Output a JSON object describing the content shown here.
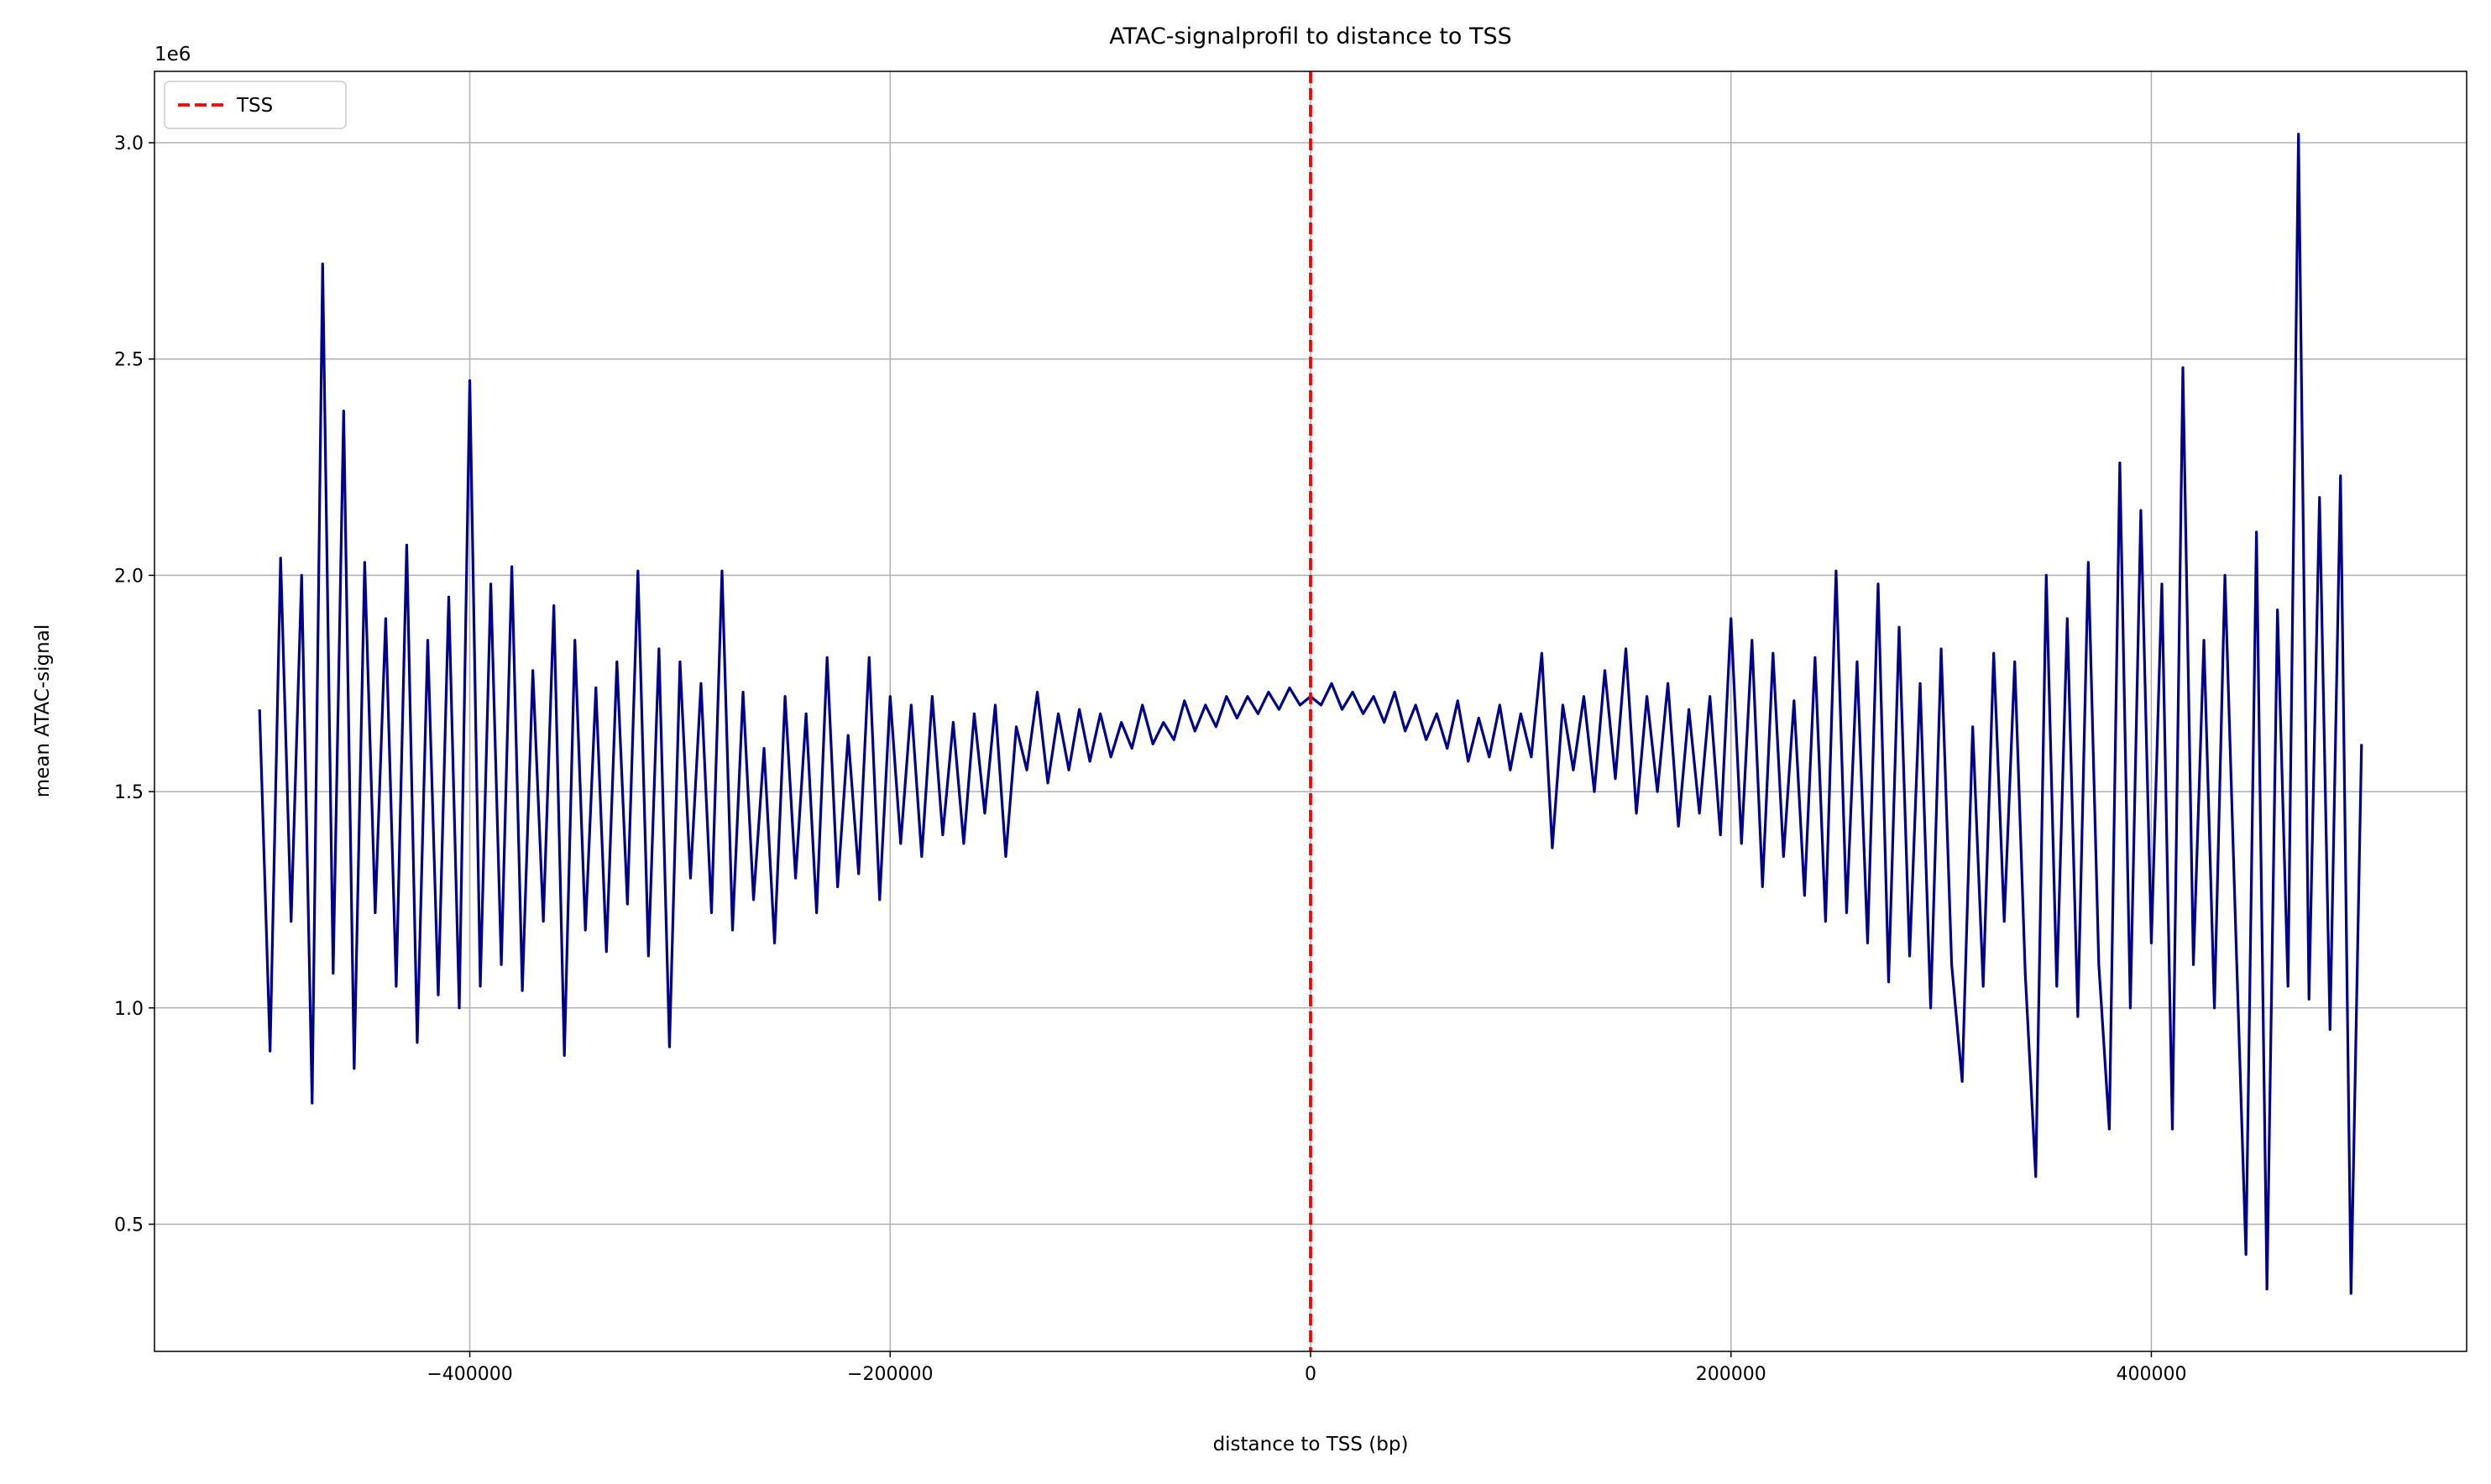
{
  "chart_data": {
    "type": "line",
    "title": "ATAC-signalprofil to distance to TSS",
    "x_label": "distance to TSS (bp)",
    "y_label": "mean ATAC-signal",
    "y_offset_label": "1e6",
    "x": [
      -500000,
      -495000,
      -490000,
      -485000,
      -480000,
      -475000,
      -470000,
      -465000,
      -460000,
      -455000,
      -450000,
      -445000,
      -440000,
      -435000,
      -430000,
      -425000,
      -420000,
      -415000,
      -410000,
      -405000,
      -400000,
      -395000,
      -390000,
      -385000,
      -380000,
      -375000,
      -370000,
      -365000,
      -360000,
      -355000,
      -350000,
      -345000,
      -340000,
      -335000,
      -330000,
      -325000,
      -320000,
      -315000,
      -310000,
      -305000,
      -300000,
      -295000,
      -290000,
      -285000,
      -280000,
      -275000,
      -270000,
      -265000,
      -260000,
      -255000,
      -250000,
      -245000,
      -240000,
      -235000,
      -230000,
      -225000,
      -220000,
      -215000,
      -210000,
      -205000,
      -200000,
      -195000,
      -190000,
      -185000,
      -180000,
      -175000,
      -170000,
      -165000,
      -160000,
      -155000,
      -150000,
      -145000,
      -140000,
      -135000,
      -130000,
      -125000,
      -120000,
      -115000,
      -110000,
      -105000,
      -100000,
      -95000,
      -90000,
      -85000,
      -80000,
      -75000,
      -70000,
      -65000,
      -60000,
      -55000,
      -50000,
      -45000,
      -40000,
      -35000,
      -30000,
      -25000,
      -20000,
      -15000,
      -10000,
      -5000,
      0,
      5000,
      10000,
      15000,
      20000,
      25000,
      30000,
      35000,
      40000,
      45000,
      50000,
      55000,
      60000,
      65000,
      70000,
      75000,
      80000,
      85000,
      90000,
      95000,
      100000,
      105000,
      110000,
      115000,
      120000,
      125000,
      130000,
      135000,
      140000,
      145000,
      150000,
      155000,
      160000,
      165000,
      170000,
      175000,
      180000,
      185000,
      190000,
      195000,
      200000,
      205000,
      210000,
      215000,
      220000,
      225000,
      230000,
      235000,
      240000,
      245000,
      250000,
      255000,
      260000,
      265000,
      270000,
      275000,
      280000,
      285000,
      290000,
      295000,
      300000,
      305000,
      310000,
      315000,
      320000,
      325000,
      330000,
      335000,
      340000,
      345000,
      350000,
      355000,
      360000,
      365000,
      370000,
      375000,
      380000,
      385000,
      390000,
      395000,
      400000,
      405000,
      410000,
      415000,
      420000,
      425000,
      430000,
      435000,
      440000,
      445000,
      450000,
      455000,
      460000,
      465000,
      470000,
      475000,
      480000,
      485000,
      490000,
      495000,
      500000
    ],
    "series": [
      {
        "color": "#00008b",
        "values": [
          1.69,
          0.9,
          2.04,
          1.2,
          2.0,
          0.78,
          2.72,
          1.08,
          2.38,
          0.86,
          2.03,
          1.22,
          1.9,
          1.05,
          2.07,
          0.92,
          1.85,
          1.03,
          1.95,
          1.0,
          2.45,
          1.05,
          1.98,
          1.1,
          2.02,
          1.04,
          1.78,
          1.2,
          1.93,
          0.89,
          1.85,
          1.18,
          1.74,
          1.13,
          1.8,
          1.24,
          2.01,
          1.12,
          1.83,
          0.91,
          1.8,
          1.3,
          1.75,
          1.22,
          2.01,
          1.18,
          1.73,
          1.25,
          1.6,
          1.15,
          1.72,
          1.3,
          1.68,
          1.22,
          1.81,
          1.28,
          1.63,
          1.31,
          1.81,
          1.25,
          1.72,
          1.38,
          1.7,
          1.35,
          1.72,
          1.4,
          1.66,
          1.38,
          1.68,
          1.45,
          1.7,
          1.35,
          1.65,
          1.55,
          1.73,
          1.52,
          1.68,
          1.55,
          1.69,
          1.57,
          1.68,
          1.58,
          1.66,
          1.6,
          1.7,
          1.61,
          1.66,
          1.62,
          1.71,
          1.64,
          1.7,
          1.65,
          1.72,
          1.67,
          1.72,
          1.68,
          1.73,
          1.69,
          1.74,
          1.7,
          1.72,
          1.7,
          1.75,
          1.69,
          1.73,
          1.68,
          1.72,
          1.66,
          1.73,
          1.64,
          1.7,
          1.62,
          1.68,
          1.6,
          1.71,
          1.57,
          1.67,
          1.58,
          1.7,
          1.55,
          1.68,
          1.58,
          1.82,
          1.37,
          1.7,
          1.55,
          1.72,
          1.5,
          1.78,
          1.53,
          1.83,
          1.45,
          1.72,
          1.5,
          1.75,
          1.42,
          1.69,
          1.45,
          1.72,
          1.4,
          1.9,
          1.38,
          1.85,
          1.28,
          1.82,
          1.35,
          1.71,
          1.26,
          1.81,
          1.2,
          2.01,
          1.22,
          1.8,
          1.15,
          1.98,
          1.06,
          1.88,
          1.12,
          1.75,
          1.0,
          1.83,
          1.1,
          0.83,
          1.65,
          1.05,
          1.82,
          1.2,
          1.8,
          1.08,
          0.61,
          2.0,
          1.05,
          1.9,
          0.98,
          2.03,
          1.1,
          0.72,
          2.26,
          1.0,
          2.15,
          1.15,
          1.98,
          0.72,
          2.48,
          1.1,
          1.85,
          1.0,
          2.0,
          1.2,
          0.43,
          2.1,
          0.35,
          1.92,
          1.05,
          3.02,
          1.02,
          2.18,
          0.95,
          2.23,
          0.34,
          1.61
        ]
      }
    ],
    "vlines": [
      {
        "x": 0,
        "label": "TSS",
        "color": "#ff0000",
        "dashed": true
      }
    ],
    "xlim": [
      -550000,
      550000
    ],
    "xticks": [
      {
        "value": -400000,
        "label": "−400000"
      },
      {
        "value": -200000,
        "label": "−200000"
      },
      0,
      200000,
      400000
    ],
    "ylim": [
      0.206,
      3.165
    ],
    "yticks": [
      0.5,
      {
        "value": 1,
        "label": "1.0"
      },
      1.5,
      {
        "value": 2,
        "label": "2.0"
      },
      2.5,
      {
        "value": 3,
        "label": "3.0"
      }
    ],
    "grid": true,
    "legend_loc": "upper left"
  }
}
